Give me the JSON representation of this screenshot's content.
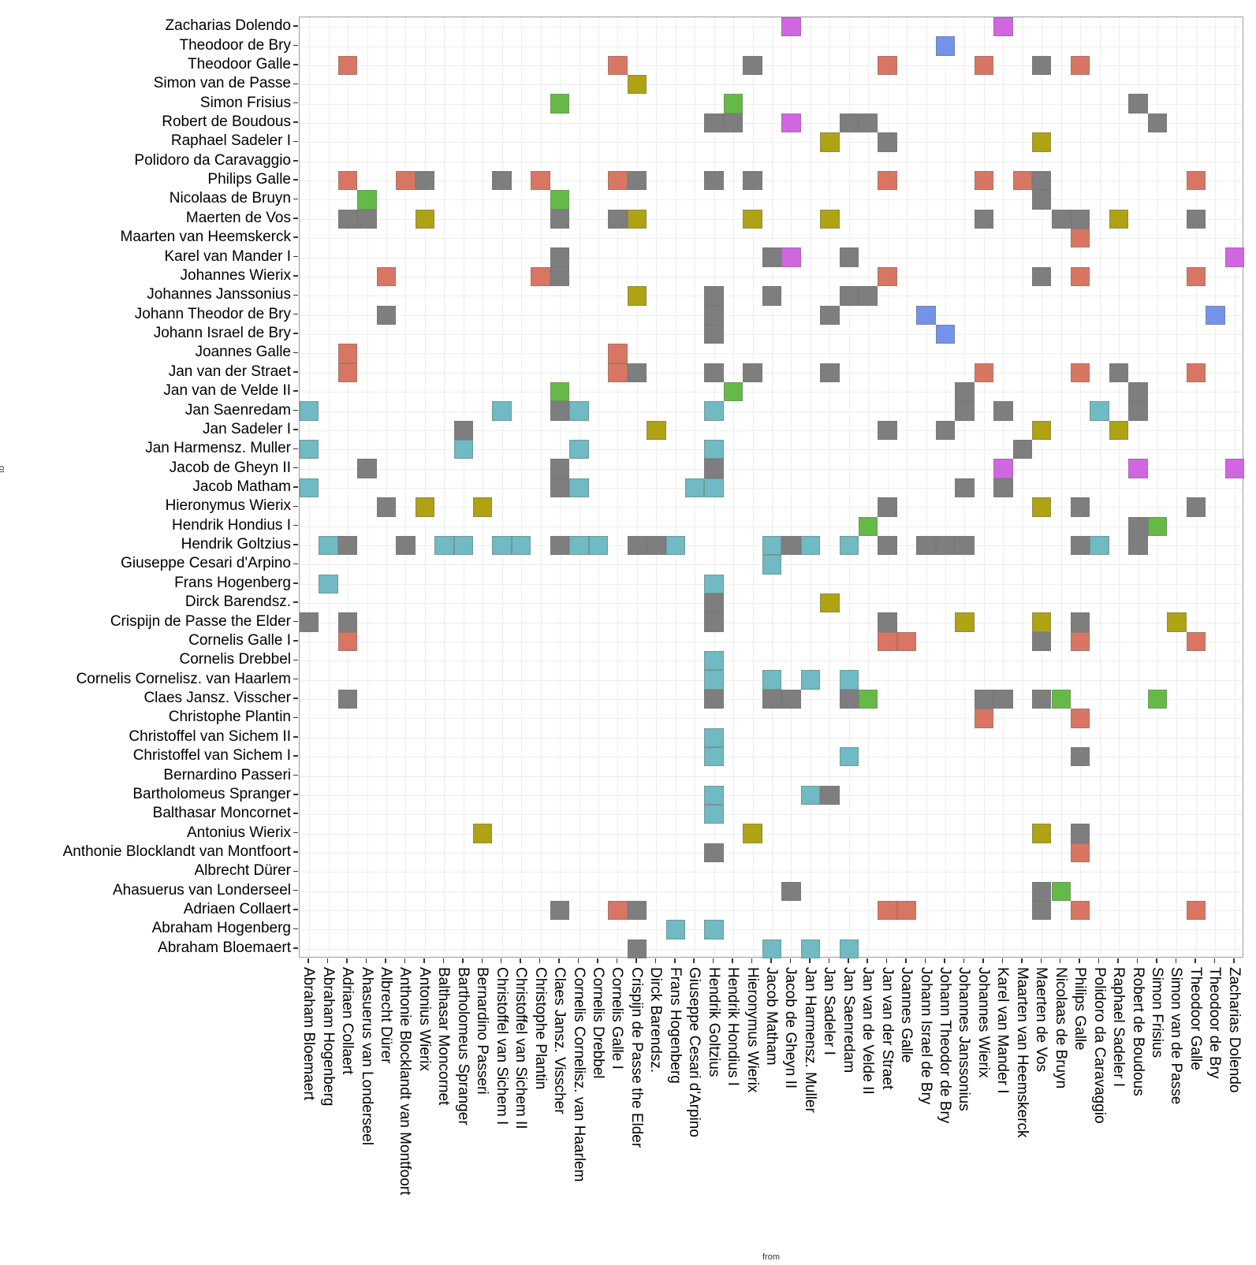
{
  "axes": {
    "x_title": "from",
    "y_title": "to"
  },
  "chart_data": {
    "type": "heatmap",
    "title": "",
    "xlabel": "from",
    "ylabel": "to",
    "grid": "on",
    "legend_position": "none",
    "categories": [
      "Abraham Bloemaert",
      "Abraham Hogenberg",
      "Adriaen Collaert",
      "Ahasuerus van Londerseel",
      "Albrecht Dürer",
      "Anthonie Blocklandt van Montfoort",
      "Antonius Wierix",
      "Balthasar Moncornet",
      "Bartholomeus Spranger",
      "Bernardino Passeri",
      "Christoffel van Sichem I",
      "Christoffel van Sichem II",
      "Christophe Plantin",
      "Claes Jansz. Visscher",
      "Cornelis Cornelisz. van Haarlem",
      "Cornelis Drebbel",
      "Cornelis Galle I",
      "Crispijn de Passe the Elder",
      "Dirck Barendsz.",
      "Frans Hogenberg",
      "Giuseppe Cesari d'Arpino",
      "Hendrik Goltzius",
      "Hendrik Hondius I",
      "Hieronymus Wierix",
      "Jacob Matham",
      "Jacob de Gheyn II",
      "Jan Harmensz. Muller",
      "Jan Sadeler I",
      "Jan Saenredam",
      "Jan van de Velde II",
      "Jan van der Straet",
      "Joannes Galle",
      "Johann Israel de Bry",
      "Johann Theodor de Bry",
      "Johannes Janssonius",
      "Johannes Wierix",
      "Karel van Mander I",
      "Maarten van Heemskerck",
      "Maerten de Vos",
      "Nicolaas de Bruyn",
      "Philips Galle",
      "Polidoro da Caravaggio",
      "Raphael Sadeler I",
      "Robert de Boudous",
      "Simon Frisius",
      "Simon van de Passe",
      "Theodoor Galle",
      "Theodoor de Bry",
      "Zacharias Dolendo"
    ],
    "x_axis_order": "alphabetical left to right (same list as categories)",
    "y_axis_order": "alphabetical bottom to top (top row = Zacharias Dolendo)",
    "palette": {
      "g": "#7e7e7e",
      "r": "#d97663",
      "t": "#6fbac3",
      "o": "#afa213",
      "n": "#65ba47",
      "m": "#d167e0",
      "b": "#7393eb"
    },
    "cells_format": "[column_index_from_left_1based, row_index_from_top_1based, palette_key]",
    "cells": [
      [
        26,
        1,
        "m"
      ],
      [
        37,
        1,
        "m"
      ],
      [
        34,
        2,
        "b"
      ],
      [
        3,
        3,
        "r"
      ],
      [
        17,
        3,
        "r"
      ],
      [
        24,
        3,
        "g"
      ],
      [
        31,
        3,
        "r"
      ],
      [
        36,
        3,
        "r"
      ],
      [
        39,
        3,
        "g"
      ],
      [
        41,
        3,
        "r"
      ],
      [
        18,
        4,
        "o"
      ],
      [
        14,
        5,
        "n"
      ],
      [
        23,
        5,
        "n"
      ],
      [
        44,
        5,
        "g"
      ],
      [
        22,
        6,
        "g"
      ],
      [
        23,
        6,
        "g"
      ],
      [
        26,
        6,
        "m"
      ],
      [
        29,
        6,
        "g"
      ],
      [
        30,
        6,
        "g"
      ],
      [
        45,
        6,
        "g"
      ],
      [
        28,
        7,
        "o"
      ],
      [
        31,
        7,
        "g"
      ],
      [
        39,
        7,
        "o"
      ],
      [
        3,
        9,
        "r"
      ],
      [
        6,
        9,
        "r"
      ],
      [
        7,
        9,
        "g"
      ],
      [
        11,
        9,
        "g"
      ],
      [
        13,
        9,
        "r"
      ],
      [
        17,
        9,
        "r"
      ],
      [
        18,
        9,
        "g"
      ],
      [
        22,
        9,
        "g"
      ],
      [
        24,
        9,
        "g"
      ],
      [
        31,
        9,
        "r"
      ],
      [
        36,
        9,
        "r"
      ],
      [
        38,
        9,
        "r"
      ],
      [
        39,
        9,
        "g"
      ],
      [
        47,
        9,
        "r"
      ],
      [
        4,
        10,
        "n"
      ],
      [
        14,
        10,
        "n"
      ],
      [
        39,
        10,
        "g"
      ],
      [
        3,
        11,
        "g"
      ],
      [
        4,
        11,
        "g"
      ],
      [
        7,
        11,
        "o"
      ],
      [
        14,
        11,
        "g"
      ],
      [
        17,
        11,
        "g"
      ],
      [
        18,
        11,
        "o"
      ],
      [
        24,
        11,
        "o"
      ],
      [
        28,
        11,
        "o"
      ],
      [
        36,
        11,
        "g"
      ],
      [
        40,
        11,
        "g"
      ],
      [
        41,
        11,
        "g"
      ],
      [
        43,
        11,
        "o"
      ],
      [
        47,
        11,
        "g"
      ],
      [
        41,
        12,
        "r"
      ],
      [
        14,
        13,
        "g"
      ],
      [
        25,
        13,
        "g"
      ],
      [
        26,
        13,
        "m"
      ],
      [
        29,
        13,
        "g"
      ],
      [
        49,
        13,
        "m"
      ],
      [
        5,
        14,
        "r"
      ],
      [
        13,
        14,
        "r"
      ],
      [
        14,
        14,
        "g"
      ],
      [
        31,
        14,
        "r"
      ],
      [
        39,
        14,
        "g"
      ],
      [
        41,
        14,
        "r"
      ],
      [
        47,
        14,
        "r"
      ],
      [
        18,
        15,
        "o"
      ],
      [
        22,
        15,
        "g"
      ],
      [
        25,
        15,
        "g"
      ],
      [
        29,
        15,
        "g"
      ],
      [
        30,
        15,
        "g"
      ],
      [
        5,
        16,
        "g"
      ],
      [
        22,
        16,
        "g"
      ],
      [
        28,
        16,
        "g"
      ],
      [
        33,
        16,
        "b"
      ],
      [
        48,
        16,
        "b"
      ],
      [
        22,
        17,
        "g"
      ],
      [
        34,
        17,
        "b"
      ],
      [
        3,
        18,
        "r"
      ],
      [
        17,
        18,
        "r"
      ],
      [
        3,
        19,
        "r"
      ],
      [
        17,
        19,
        "r"
      ],
      [
        18,
        19,
        "g"
      ],
      [
        22,
        19,
        "g"
      ],
      [
        24,
        19,
        "g"
      ],
      [
        28,
        19,
        "g"
      ],
      [
        36,
        19,
        "r"
      ],
      [
        41,
        19,
        "r"
      ],
      [
        43,
        19,
        "g"
      ],
      [
        47,
        19,
        "r"
      ],
      [
        14,
        20,
        "n"
      ],
      [
        23,
        20,
        "n"
      ],
      [
        35,
        20,
        "g"
      ],
      [
        44,
        20,
        "g"
      ],
      [
        1,
        21,
        "t"
      ],
      [
        11,
        21,
        "t"
      ],
      [
        14,
        21,
        "g"
      ],
      [
        15,
        21,
        "t"
      ],
      [
        22,
        21,
        "t"
      ],
      [
        35,
        21,
        "g"
      ],
      [
        37,
        21,
        "g"
      ],
      [
        42,
        21,
        "t"
      ],
      [
        44,
        21,
        "g"
      ],
      [
        9,
        22,
        "g"
      ],
      [
        19,
        22,
        "o"
      ],
      [
        31,
        22,
        "g"
      ],
      [
        34,
        22,
        "g"
      ],
      [
        39,
        22,
        "o"
      ],
      [
        43,
        22,
        "o"
      ],
      [
        1,
        23,
        "t"
      ],
      [
        9,
        23,
        "t"
      ],
      [
        15,
        23,
        "t"
      ],
      [
        22,
        23,
        "t"
      ],
      [
        38,
        23,
        "g"
      ],
      [
        4,
        24,
        "g"
      ],
      [
        14,
        24,
        "g"
      ],
      [
        22,
        24,
        "g"
      ],
      [
        37,
        24,
        "m"
      ],
      [
        44,
        24,
        "m"
      ],
      [
        49,
        24,
        "m"
      ],
      [
        1,
        25,
        "t"
      ],
      [
        14,
        25,
        "g"
      ],
      [
        15,
        25,
        "t"
      ],
      [
        21,
        25,
        "t"
      ],
      [
        22,
        25,
        "t"
      ],
      [
        35,
        25,
        "g"
      ],
      [
        37,
        25,
        "g"
      ],
      [
        5,
        26,
        "g"
      ],
      [
        7,
        26,
        "o"
      ],
      [
        10,
        26,
        "o"
      ],
      [
        31,
        26,
        "g"
      ],
      [
        39,
        26,
        "o"
      ],
      [
        41,
        26,
        "g"
      ],
      [
        47,
        26,
        "g"
      ],
      [
        30,
        27,
        "n"
      ],
      [
        44,
        27,
        "g"
      ],
      [
        45,
        27,
        "n"
      ],
      [
        2,
        28,
        "t"
      ],
      [
        3,
        28,
        "g"
      ],
      [
        6,
        28,
        "g"
      ],
      [
        8,
        28,
        "t"
      ],
      [
        9,
        28,
        "t"
      ],
      [
        11,
        28,
        "t"
      ],
      [
        12,
        28,
        "t"
      ],
      [
        14,
        28,
        "g"
      ],
      [
        15,
        28,
        "t"
      ],
      [
        16,
        28,
        "t"
      ],
      [
        18,
        28,
        "g"
      ],
      [
        19,
        28,
        "g"
      ],
      [
        20,
        28,
        "t"
      ],
      [
        25,
        28,
        "t"
      ],
      [
        26,
        28,
        "g"
      ],
      [
        27,
        28,
        "t"
      ],
      [
        29,
        28,
        "t"
      ],
      [
        31,
        28,
        "g"
      ],
      [
        33,
        28,
        "g"
      ],
      [
        34,
        28,
        "g"
      ],
      [
        35,
        28,
        "g"
      ],
      [
        41,
        28,
        "g"
      ],
      [
        42,
        28,
        "t"
      ],
      [
        44,
        28,
        "g"
      ],
      [
        25,
        29,
        "t"
      ],
      [
        2,
        30,
        "t"
      ],
      [
        22,
        30,
        "t"
      ],
      [
        22,
        31,
        "g"
      ],
      [
        28,
        31,
        "o"
      ],
      [
        1,
        32,
        "g"
      ],
      [
        3,
        32,
        "g"
      ],
      [
        22,
        32,
        "g"
      ],
      [
        31,
        32,
        "g"
      ],
      [
        35,
        32,
        "o"
      ],
      [
        39,
        32,
        "o"
      ],
      [
        41,
        32,
        "g"
      ],
      [
        46,
        32,
        "o"
      ],
      [
        3,
        33,
        "r"
      ],
      [
        31,
        33,
        "r"
      ],
      [
        32,
        33,
        "r"
      ],
      [
        39,
        33,
        "g"
      ],
      [
        41,
        33,
        "r"
      ],
      [
        47,
        33,
        "r"
      ],
      [
        22,
        34,
        "t"
      ],
      [
        22,
        35,
        "t"
      ],
      [
        25,
        35,
        "t"
      ],
      [
        27,
        35,
        "t"
      ],
      [
        29,
        35,
        "t"
      ],
      [
        3,
        36,
        "g"
      ],
      [
        22,
        36,
        "g"
      ],
      [
        25,
        36,
        "g"
      ],
      [
        26,
        36,
        "g"
      ],
      [
        29,
        36,
        "g"
      ],
      [
        30,
        36,
        "n"
      ],
      [
        36,
        36,
        "g"
      ],
      [
        37,
        36,
        "g"
      ],
      [
        39,
        36,
        "g"
      ],
      [
        40,
        36,
        "n"
      ],
      [
        45,
        36,
        "n"
      ],
      [
        36,
        37,
        "r"
      ],
      [
        41,
        37,
        "r"
      ],
      [
        22,
        38,
        "t"
      ],
      [
        22,
        39,
        "t"
      ],
      [
        29,
        39,
        "t"
      ],
      [
        41,
        39,
        "g"
      ],
      [
        22,
        41,
        "t"
      ],
      [
        27,
        41,
        "t"
      ],
      [
        28,
        41,
        "g"
      ],
      [
        22,
        42,
        "t"
      ],
      [
        10,
        43,
        "o"
      ],
      [
        24,
        43,
        "o"
      ],
      [
        39,
        43,
        "o"
      ],
      [
        41,
        43,
        "g"
      ],
      [
        22,
        44,
        "g"
      ],
      [
        41,
        44,
        "r"
      ],
      [
        26,
        46,
        "g"
      ],
      [
        39,
        46,
        "g"
      ],
      [
        40,
        46,
        "n"
      ],
      [
        14,
        47,
        "g"
      ],
      [
        17,
        47,
        "r"
      ],
      [
        18,
        47,
        "g"
      ],
      [
        31,
        47,
        "r"
      ],
      [
        32,
        47,
        "r"
      ],
      [
        39,
        47,
        "g"
      ],
      [
        41,
        47,
        "r"
      ],
      [
        47,
        47,
        "r"
      ],
      [
        20,
        48,
        "t"
      ],
      [
        22,
        48,
        "t"
      ],
      [
        18,
        49,
        "g"
      ],
      [
        25,
        49,
        "t"
      ],
      [
        27,
        49,
        "t"
      ],
      [
        29,
        49,
        "t"
      ]
    ]
  }
}
